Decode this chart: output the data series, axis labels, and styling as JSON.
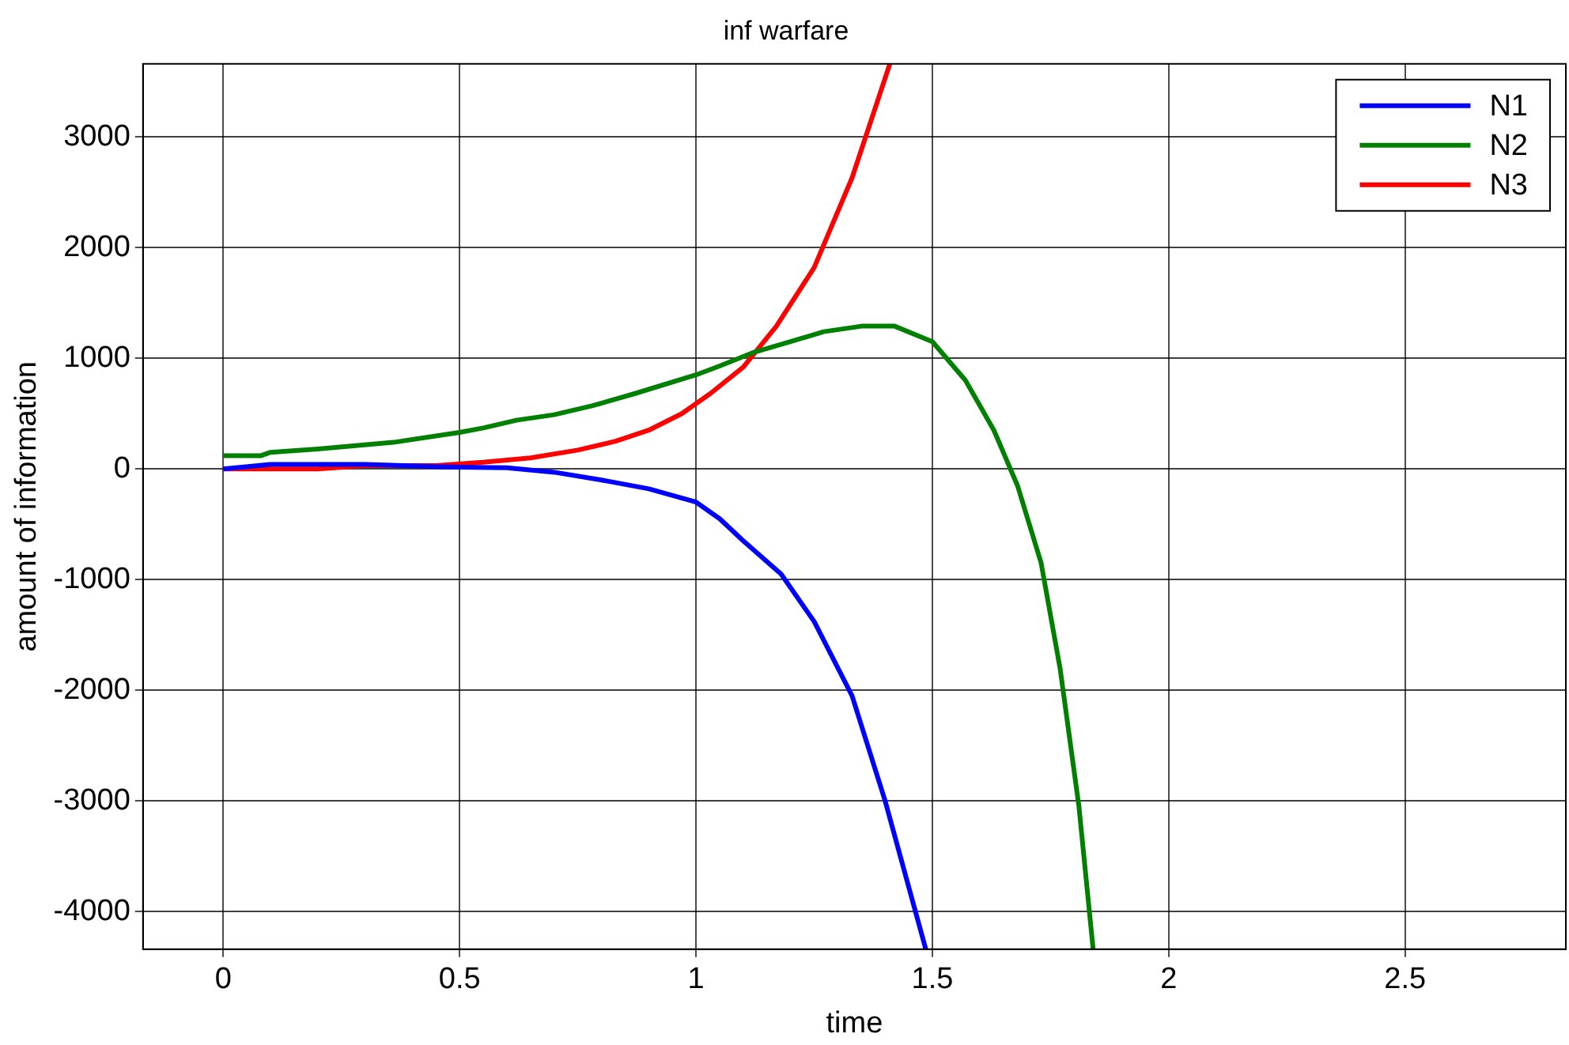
{
  "chart_data": {
    "type": "line",
    "title": "inf warfare",
    "xlabel": "time",
    "ylabel": "amount of information",
    "xlim": [
      -0.17,
      2.84
    ],
    "xticks": [
      0,
      0.5,
      1,
      1.5,
      2,
      2.5
    ],
    "ylim": [
      -4340,
      3660
    ],
    "yticks": [
      -4000,
      -3000,
      -2000,
      -1000,
      0,
      1000,
      2000,
      3000
    ],
    "grid": true,
    "legend": "top right",
    "marker": "none",
    "line_style": "solid",
    "series": [
      {
        "name": "N1",
        "color": "#0000ff",
        "x": [
          0,
          0.1,
          0.3,
          0.5,
          0.6,
          0.7,
          0.8,
          0.9,
          1.0,
          1.05,
          1.1,
          1.18,
          1.25,
          1.33,
          1.4,
          1.486
        ],
        "values": [
          0,
          40,
          40,
          15,
          10,
          -30,
          -100,
          -180,
          -300,
          -450,
          -650,
          -950,
          -1380,
          -2050,
          -3000,
          -4340
        ]
      },
      {
        "name": "N2",
        "color": "#008000",
        "x": [
          0,
          0.08,
          0.1,
          0.2,
          0.36,
          0.5,
          0.55,
          0.62,
          0.7,
          0.78,
          0.87,
          1.0,
          1.05,
          1.12,
          1.2,
          1.27,
          1.35,
          1.42,
          1.5,
          1.57,
          1.63,
          1.68,
          1.73,
          1.77,
          1.81,
          1.84
        ],
        "values": [
          120,
          120,
          150,
          180,
          240,
          330,
          370,
          440,
          490,
          570,
          680,
          850,
          930,
          1050,
          1150,
          1240,
          1290,
          1290,
          1150,
          800,
          350,
          -150,
          -850,
          -1800,
          -3050,
          -4340
        ]
      },
      {
        "name": "N3",
        "color": "#ff0000",
        "x": [
          0,
          0.2,
          0.3,
          0.45,
          0.55,
          0.65,
          0.75,
          0.83,
          0.9,
          0.97,
          1.03,
          1.1,
          1.17,
          1.25,
          1.33,
          1.41
        ],
        "values": [
          0,
          0,
          30,
          30,
          60,
          100,
          170,
          250,
          350,
          500,
          680,
          920,
          1290,
          1820,
          2630,
          3660
        ]
      }
    ]
  }
}
